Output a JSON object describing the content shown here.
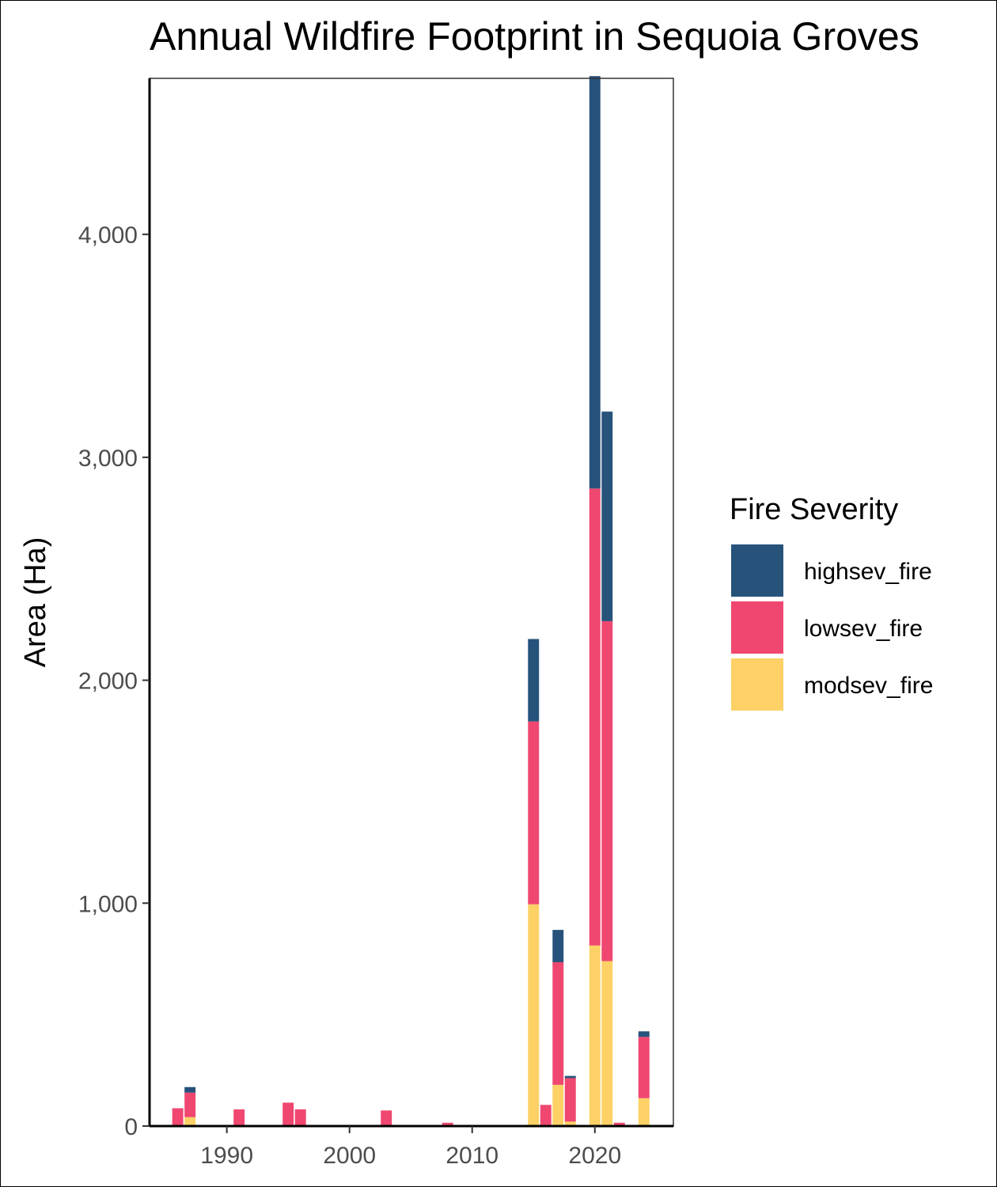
{
  "chart_data": {
    "type": "bar",
    "stacked": true,
    "title": "Annual Wildfire Footprint in Sequoia Groves",
    "xlabel": "",
    "ylabel": "Area (Ha)",
    "xlim": [
      1983.7,
      2026.4
    ],
    "ylim": [
      0,
      4700
    ],
    "xticks": [
      1990,
      2000,
      2010,
      2020
    ],
    "yticks": [
      0,
      1000,
      2000,
      3000,
      4000
    ],
    "ytick_labels": [
      "0",
      "1,000",
      "2,000",
      "3,000",
      "4,000"
    ],
    "grid": false,
    "legend": {
      "title": "Fire Severity",
      "position": "right"
    },
    "series": [
      {
        "name": "highsev_fire",
        "color": "#27537b",
        "points": [
          [
            1987,
            25
          ],
          [
            2015,
            370
          ],
          [
            2017,
            145
          ],
          [
            2018,
            10
          ],
          [
            2020,
            1850
          ],
          [
            2021,
            940
          ],
          [
            2024,
            25
          ]
        ]
      },
      {
        "name": "lowsev_fire",
        "color": "#ef4770",
        "points": [
          [
            1986,
            80
          ],
          [
            1987,
            110
          ],
          [
            1991,
            75
          ],
          [
            1995,
            105
          ],
          [
            1996,
            70
          ],
          [
            2003,
            70
          ],
          [
            2008,
            15
          ],
          [
            2010,
            5
          ],
          [
            2015,
            820
          ],
          [
            2016,
            90
          ],
          [
            2017,
            550
          ],
          [
            2018,
            195
          ],
          [
            2020,
            2050
          ],
          [
            2021,
            1525
          ],
          [
            2022,
            15
          ],
          [
            2024,
            275
          ]
        ]
      },
      {
        "name": "modsev_fire",
        "color": "#fdd166",
        "points": [
          [
            1987,
            40
          ],
          [
            1996,
            5
          ],
          [
            2015,
            995
          ],
          [
            2016,
            5
          ],
          [
            2017,
            185
          ],
          [
            2018,
            20
          ],
          [
            2020,
            810
          ],
          [
            2021,
            740
          ],
          [
            2024,
            125
          ]
        ]
      }
    ]
  }
}
